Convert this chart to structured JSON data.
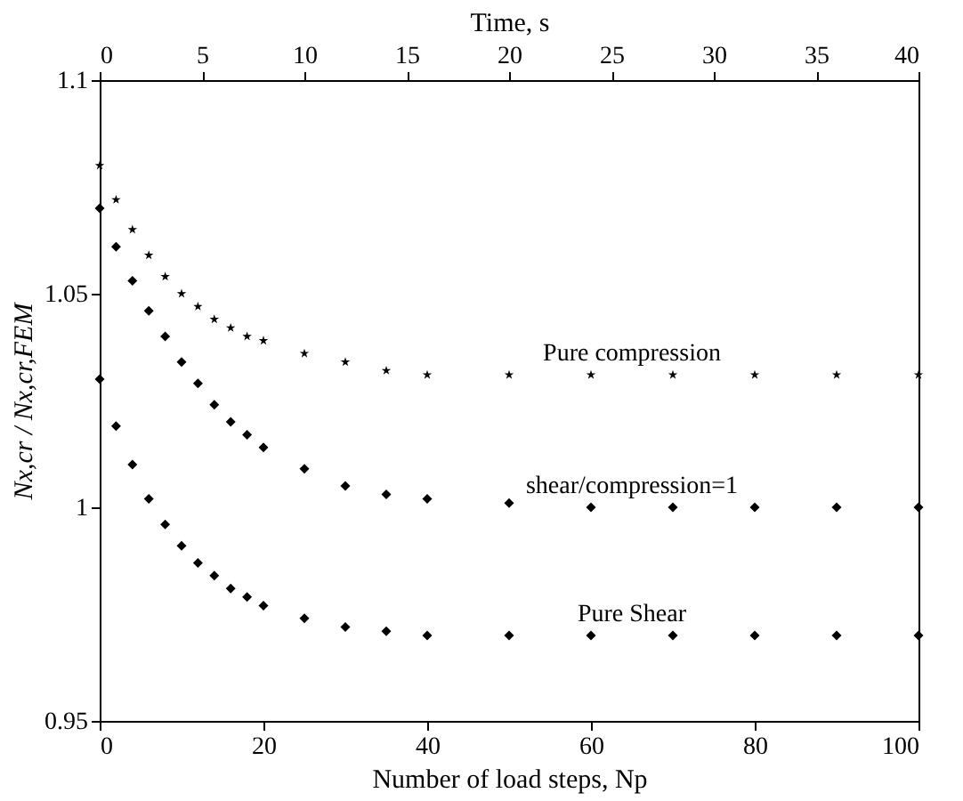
{
  "chart_data": {
    "type": "scatter",
    "x": [
      0,
      2,
      4,
      6,
      8,
      10,
      12,
      14,
      16,
      18,
      20,
      25,
      30,
      35,
      40,
      50,
      60,
      70,
      80,
      90,
      100
    ],
    "series": [
      {
        "name": "Pure compression",
        "color": "#000000",
        "marker": "star",
        "values": [
          1.08,
          1.072,
          1.065,
          1.059,
          1.054,
          1.05,
          1.047,
          1.044,
          1.042,
          1.04,
          1.039,
          1.036,
          1.034,
          1.032,
          1.031,
          1.031,
          1.031,
          1.031,
          1.031,
          1.031,
          1.031
        ]
      },
      {
        "name": "shear/compression=1",
        "color": "#000000",
        "marker": "diamond",
        "values": [
          1.07,
          1.061,
          1.053,
          1.046,
          1.04,
          1.034,
          1.029,
          1.024,
          1.02,
          1.017,
          1.014,
          1.009,
          1.005,
          1.003,
          1.002,
          1.001,
          1.0,
          1.0,
          1.0,
          1.0,
          1.0
        ]
      },
      {
        "name": "Pure Shear",
        "color": "#000000",
        "marker": "diamond",
        "values": [
          1.03,
          1.019,
          1.01,
          1.002,
          0.996,
          0.991,
          0.987,
          0.984,
          0.981,
          0.979,
          0.977,
          0.974,
          0.972,
          0.971,
          0.97,
          0.97,
          0.97,
          0.97,
          0.97,
          0.97,
          0.97
        ]
      }
    ],
    "xlabel": "Number of load steps, Np",
    "ylabel": "Nx,cr / Nx,cr,FEM",
    "x2label": "Time, s",
    "xlim": [
      0,
      100
    ],
    "xticks": [
      0,
      20,
      40,
      60,
      80,
      100
    ],
    "x2lim": [
      0,
      40
    ],
    "x2ticks": [
      0,
      5,
      10,
      15,
      20,
      25,
      30,
      35,
      40
    ],
    "ylim": [
      0.95,
      1.1
    ],
    "yticks": [
      0.95,
      1,
      1.05,
      1.1
    ],
    "grid": false,
    "legend": false
  }
}
